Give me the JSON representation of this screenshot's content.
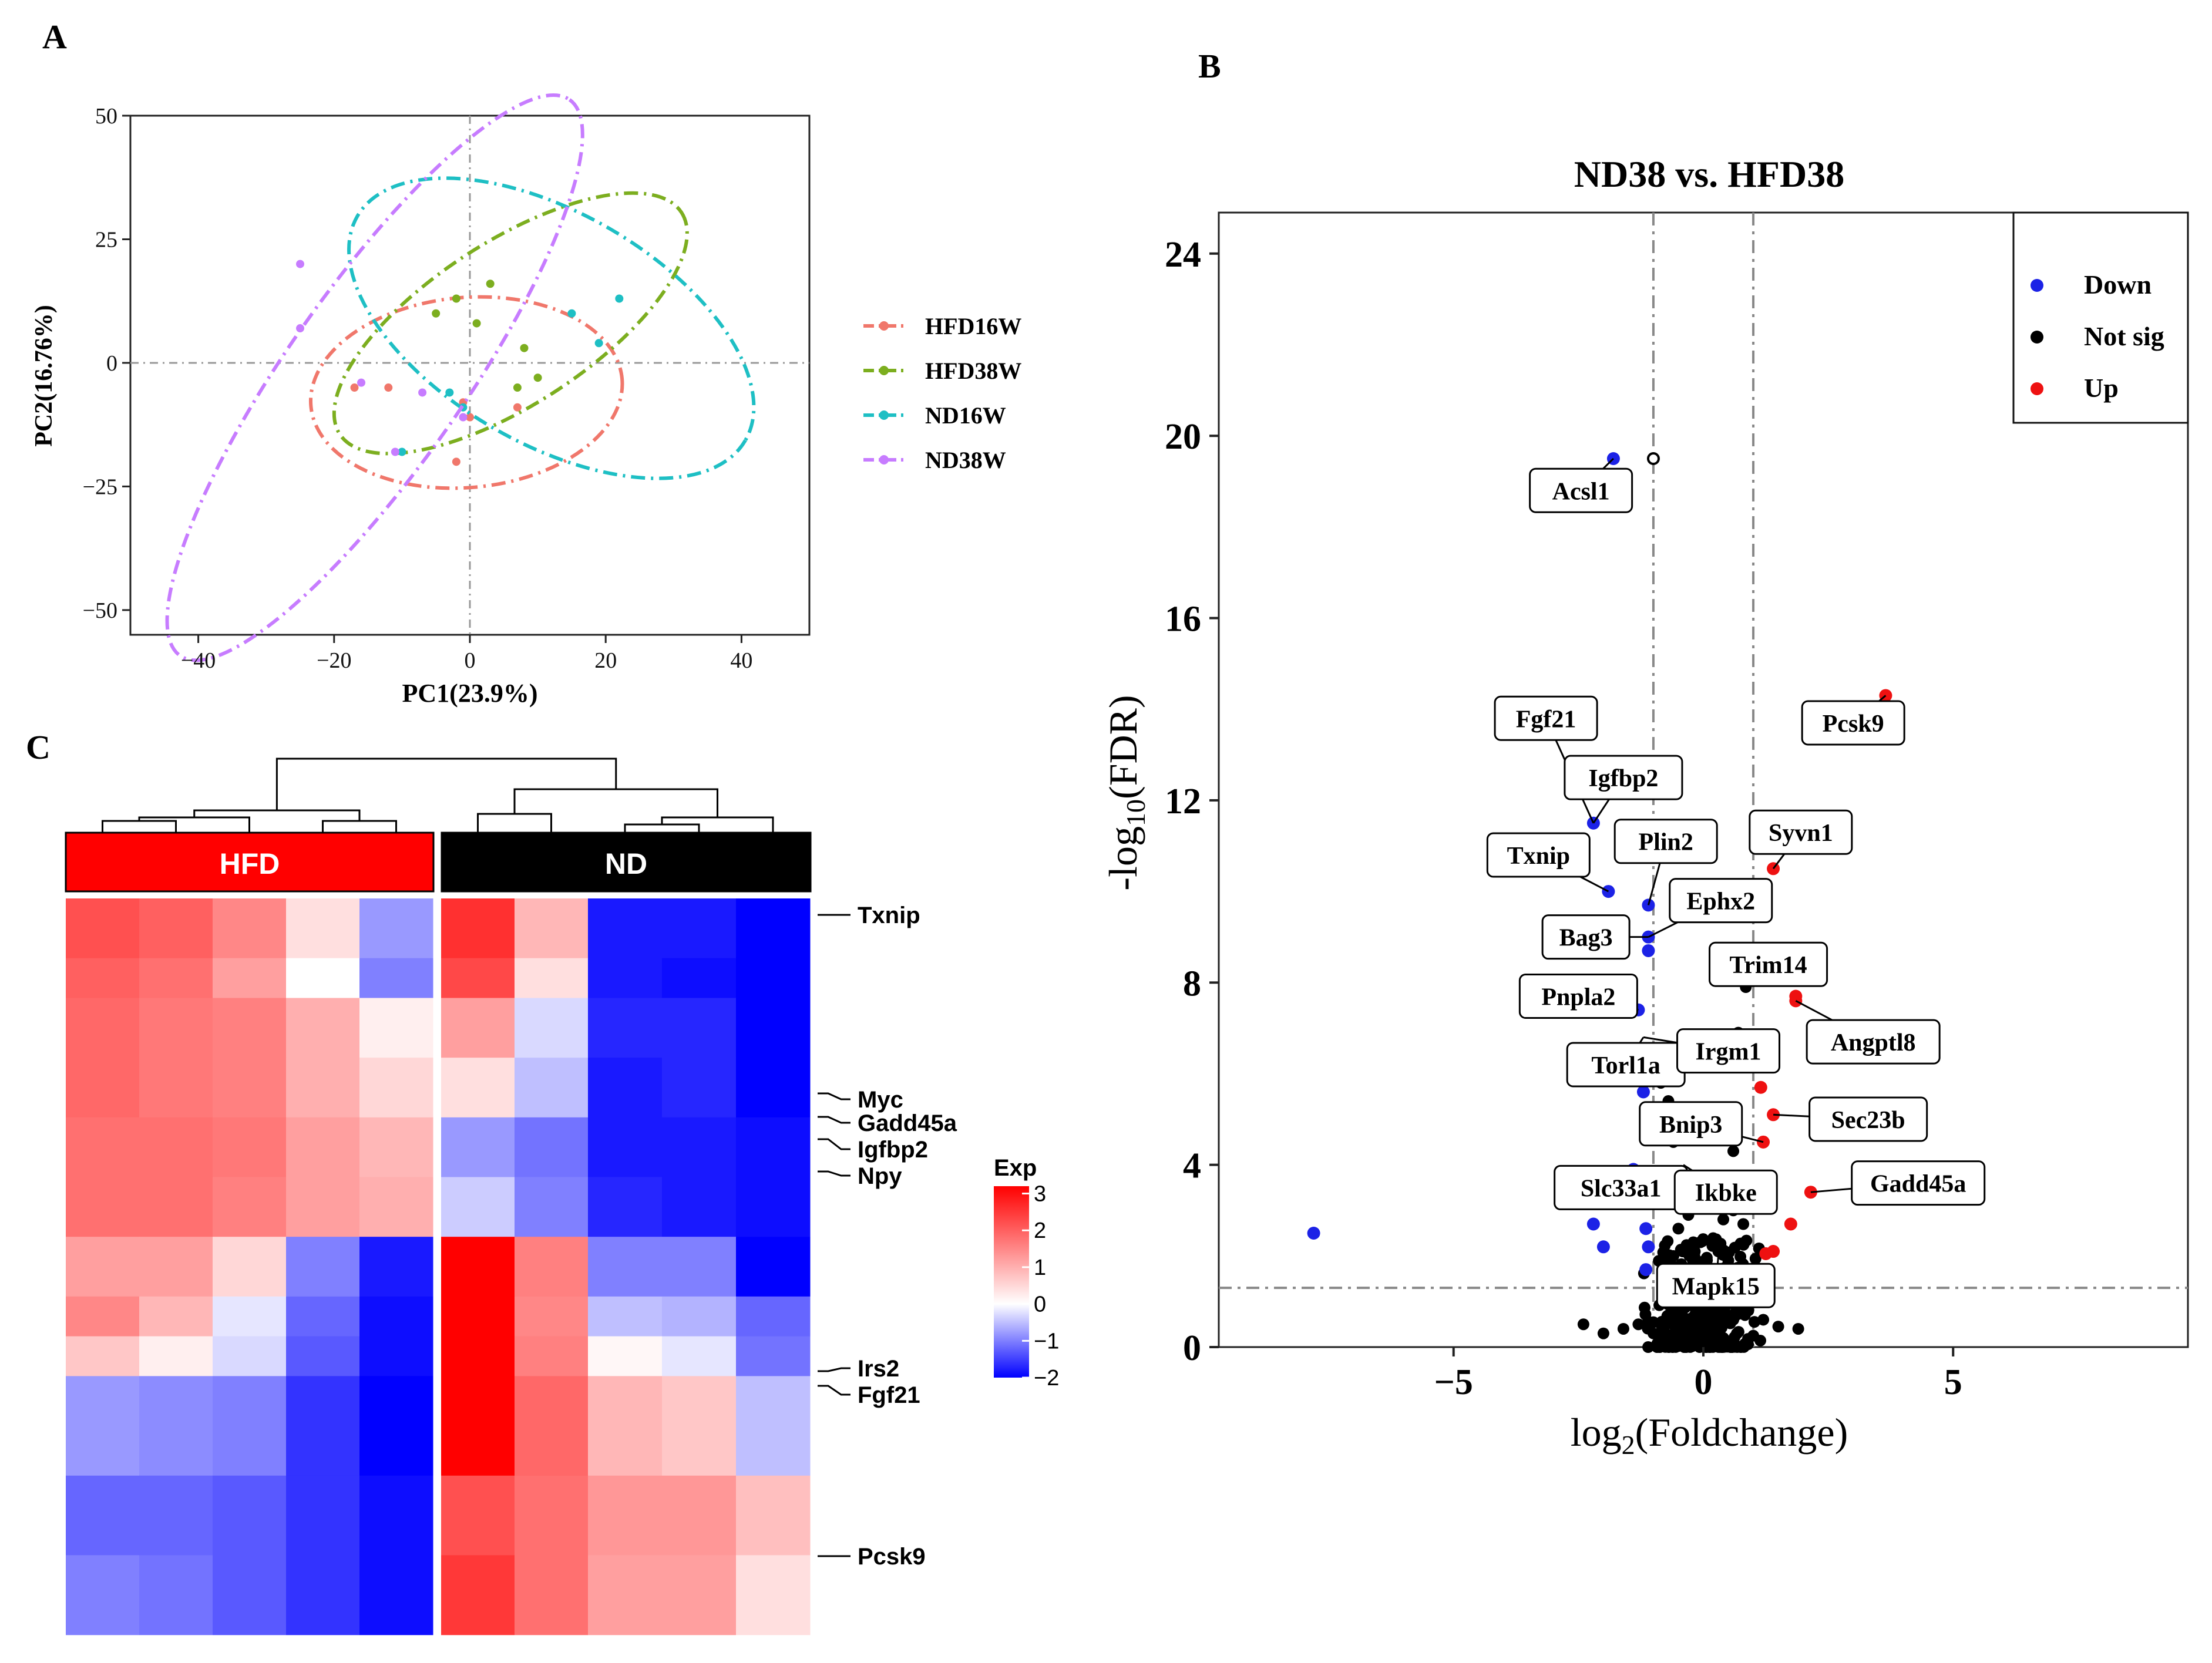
{
  "panel_labels": {
    "a": "A",
    "b": "B",
    "c": "C"
  },
  "chart_data": [
    {
      "type": "scatter",
      "panel": "A",
      "title": "",
      "xlabel": "PC1(23.9%)",
      "ylabel": "PC2(16.76%)",
      "xlim": [
        -50,
        50
      ],
      "ylim": [
        -55,
        50
      ],
      "xticks": [
        -40,
        -20,
        0,
        20,
        40
      ],
      "yticks": [
        -50,
        -25,
        0,
        25,
        50
      ],
      "xtick_labels": [
        "−40",
        "−20",
        "0",
        "20",
        "40"
      ],
      "ytick_labels": [
        "−50",
        "−25",
        "0",
        "25",
        "50"
      ],
      "legend": [
        {
          "label": "HFD16W",
          "color": "#f0776b"
        },
        {
          "label": "HFD38W",
          "color": "#7cae1f"
        },
        {
          "label": "ND16W",
          "color": "#1ebfc4"
        },
        {
          "label": "ND38W",
          "color": "#c77cff"
        }
      ],
      "series": [
        {
          "name": "HFD16W",
          "color": "#f0776b",
          "points": [
            [
              -17,
              -5
            ],
            [
              -12,
              -5
            ],
            [
              -1,
              -8
            ],
            [
              7,
              -9
            ],
            [
              0,
              -11
            ],
            [
              -2,
              -20
            ]
          ],
          "ellipse": {
            "center": [
              -0.5,
              -6
            ],
            "rx": 23,
            "ry": 14,
            "angle": -5
          }
        },
        {
          "name": "HFD38W",
          "color": "#7cae1f",
          "points": [
            [
              -5,
              10
            ],
            [
              -2,
              13
            ],
            [
              3,
              16
            ],
            [
              1,
              8
            ],
            [
              8,
              3
            ],
            [
              10,
              -3
            ],
            [
              7,
              -5
            ]
          ],
          "ellipse": {
            "center": [
              6,
              8
            ],
            "rx": 30,
            "ry": 12,
            "angle": -33
          }
        },
        {
          "name": "ND16W",
          "color": "#1ebfc4",
          "points": [
            [
              22,
              13
            ],
            [
              15,
              10
            ],
            [
              19,
              4
            ],
            [
              -10,
              -18
            ],
            [
              -1,
              -9
            ],
            [
              -3,
              -6
            ]
          ],
          "ellipse": {
            "center": [
              12,
              7
            ],
            "rx": 33,
            "ry": 17,
            "angle": 30
          }
        },
        {
          "name": "ND38W",
          "color": "#c77cff",
          "points": [
            [
              -25,
              20
            ],
            [
              -25,
              7
            ],
            [
              -16,
              -4
            ],
            [
              -7,
              -6
            ],
            [
              -11,
              -18
            ],
            [
              -1,
              -11
            ]
          ],
          "ellipse": {
            "center": [
              -14,
              -3
            ],
            "rx": 50,
            "ry": 13,
            "angle": -55
          }
        }
      ]
    },
    {
      "type": "scatter",
      "panel": "B",
      "title": "ND38 vs. HFD38",
      "xlabel_main": "log",
      "xlabel_sub": "2",
      "xlabel_rest": "(Foldchange)",
      "ylabel_main": "-log",
      "ylabel_sub": "10",
      "ylabel_rest": "(FDR)",
      "xlim": [
        -9.7,
        9.7
      ],
      "ylim": [
        0,
        24.9
      ],
      "xticks": [
        -5,
        0,
        5
      ],
      "yticks": [
        0,
        4,
        8,
        12,
        16,
        20,
        24
      ],
      "xtick_labels": [
        "−5",
        "0",
        "5"
      ],
      "ytick_labels": [
        "0",
        "4",
        "8",
        "12",
        "16",
        "20",
        "24"
      ],
      "vlines": [
        -1,
        1
      ],
      "hline": 1.3,
      "legend": [
        {
          "label": "Down",
          "color": "#1c22e6"
        },
        {
          "label": "Not sig",
          "color": "#000000"
        },
        {
          "label": "Up",
          "color": "#ee1111"
        }
      ],
      "down_points": [
        [
          -1.8,
          19.5
        ],
        [
          -2.2,
          11.5
        ],
        [
          -1.9,
          10.0
        ],
        [
          -1.1,
          9.7
        ],
        [
          -1.1,
          9.0
        ],
        [
          -1.1,
          8.7
        ],
        [
          -1.3,
          7.4
        ],
        [
          -1.2,
          5.6
        ],
        [
          -1.4,
          3.9
        ],
        [
          -2.2,
          2.7
        ],
        [
          -2.0,
          2.2
        ],
        [
          -1.1,
          2.2
        ],
        [
          -1.15,
          2.6
        ],
        [
          -7.8,
          2.5
        ],
        [
          -1.15,
          1.7
        ]
      ],
      "up_points": [
        [
          3.65,
          14.3
        ],
        [
          1.4,
          10.5
        ],
        [
          1.85,
          7.6
        ],
        [
          1.85,
          7.7
        ],
        [
          1.15,
          5.7
        ],
        [
          1.4,
          5.1
        ],
        [
          1.2,
          4.5
        ],
        [
          2.15,
          3.4
        ],
        [
          1.75,
          2.7
        ],
        [
          1.4,
          2.1
        ],
        [
          1.25,
          2.05
        ]
      ],
      "ns_points": [
        [
          -1.0,
          19.5
        ],
        [
          0.85,
          7.9
        ],
        [
          0.7,
          6.9
        ],
        [
          -0.85,
          5.8
        ],
        [
          -0.7,
          5.4
        ],
        [
          -0.6,
          4.5
        ],
        [
          0.6,
          4.3
        ],
        [
          -0.9,
          3.4
        ],
        [
          0.6,
          3.0
        ],
        [
          -0.3,
          2.9
        ],
        [
          0.4,
          2.8
        ],
        [
          -0.5,
          2.6
        ],
        [
          0.8,
          2.7
        ],
        [
          -0.2,
          2.3
        ],
        [
          0.3,
          2.1
        ],
        [
          -0.6,
          2.0
        ],
        [
          0.5,
          1.9
        ],
        [
          -0.4,
          1.7
        ],
        [
          0.2,
          1.5
        ],
        [
          -0.1,
          1.2
        ],
        [
          0.7,
          1.4
        ],
        [
          -0.8,
          1.0
        ],
        [
          0.9,
          0.8
        ],
        [
          -1.3,
          0.5
        ],
        [
          -1.6,
          0.4
        ],
        [
          1.2,
          0.6
        ],
        [
          1.5,
          0.45
        ],
        [
          1.9,
          0.4
        ],
        [
          -2.0,
          0.3
        ],
        [
          -2.4,
          0.5
        ],
        [
          0.1,
          0.3
        ],
        [
          -0.3,
          0.5
        ],
        [
          0.4,
          0.2
        ],
        [
          -0.5,
          0.15
        ],
        [
          0.6,
          0.6
        ],
        [
          -0.7,
          0.7
        ],
        [
          0.15,
          0.9
        ],
        [
          -0.15,
          0.8
        ],
        [
          1.0,
          0.25
        ],
        [
          -1.0,
          0.3
        ],
        [
          0.3,
          1.0
        ],
        [
          -0.35,
          1.1
        ]
      ],
      "labels": [
        {
          "text": "Acsl1",
          "pt": [
            -1.8,
            19.5
          ],
          "at": [
            -2.45,
            18.8
          ]
        },
        {
          "text": "Fgf21",
          "pt": [
            -2.2,
            11.5
          ],
          "at": [
            -3.15,
            13.8
          ]
        },
        {
          "text": "Igfbp2",
          "pt": [
            -2.2,
            11.5
          ],
          "at": [
            -1.6,
            12.5
          ]
        },
        {
          "text": "Txnip",
          "pt": [
            -1.9,
            10.0
          ],
          "at": [
            -3.3,
            10.8
          ]
        },
        {
          "text": "Plin2",
          "pt": [
            -1.1,
            9.7
          ],
          "at": [
            -0.75,
            11.1
          ]
        },
        {
          "text": "Ephx2",
          "pt": [
            -1.1,
            9.0
          ],
          "at": [
            0.35,
            9.8
          ]
        },
        {
          "text": "Bag3",
          "pt": [
            -1.1,
            9.0
          ],
          "at": [
            -2.35,
            9.0
          ]
        },
        {
          "text": "Pnpla2",
          "pt": [
            -1.3,
            7.4
          ],
          "at": [
            -2.5,
            7.7
          ]
        },
        {
          "text": "Torl1a",
          "pt": [
            -1.2,
            6.8
          ],
          "at": [
            -1.55,
            6.2
          ]
        },
        {
          "text": "Irgm1",
          "pt": [
            -1.2,
            6.8
          ],
          "at": [
            0.5,
            6.5
          ]
        },
        {
          "text": "Bnip3",
          "pt": [
            1.2,
            4.5
          ],
          "at": [
            -0.25,
            4.9
          ]
        },
        {
          "text": "Slc33a1",
          "pt": [
            -1.4,
            3.9
          ],
          "at": [
            -1.65,
            3.5
          ]
        },
        {
          "text": "Ikbke",
          "pt": [
            -0.4,
            4.0
          ],
          "at": [
            0.45,
            3.4
          ]
        },
        {
          "text": "Mapk15",
          "pt": [
            0.3,
            2.0
          ],
          "at": [
            0.25,
            1.35
          ]
        },
        {
          "text": "Pcsk9",
          "pt": [
            3.65,
            14.3
          ],
          "at": [
            3.0,
            13.7
          ]
        },
        {
          "text": "Syvn1",
          "pt": [
            1.4,
            10.5
          ],
          "at": [
            1.95,
            11.3
          ]
        },
        {
          "text": "Trim14",
          "pt": [
            0.85,
            7.9
          ],
          "at": [
            1.3,
            8.4
          ]
        },
        {
          "text": "Angptl8",
          "pt": [
            1.85,
            7.6
          ],
          "at": [
            3.4,
            6.7
          ]
        },
        {
          "text": "Sec23b",
          "pt": [
            1.4,
            5.1
          ],
          "at": [
            3.3,
            5.0
          ]
        },
        {
          "text": "Gadd45a",
          "pt": [
            2.15,
            3.4
          ],
          "at": [
            4.3,
            3.6
          ]
        }
      ]
    },
    {
      "type": "heatmap",
      "panel": "C",
      "groups": [
        {
          "label": "HFD",
          "color": "#ff0000"
        },
        {
          "label": "ND",
          "color": "#000000"
        }
      ],
      "columns": 10,
      "row_blocks": [
        [
          2.2,
          2.0,
          1.5,
          0.4,
          -0.8,
          2.6,
          0.9,
          -1.8,
          -1.8,
          -2.8
        ],
        [
          2.0,
          1.8,
          1.2,
          0.0,
          -1.0,
          2.3,
          0.4,
          -1.8,
          -1.9,
          -2.8
        ],
        [
          1.9,
          1.7,
          1.6,
          1.0,
          0.2,
          1.2,
          -0.3,
          -1.7,
          -1.7,
          -2.2
        ],
        [
          1.9,
          1.7,
          1.6,
          1.0,
          0.5,
          0.4,
          -0.5,
          -1.8,
          -1.7,
          -2.3
        ],
        [
          1.8,
          1.8,
          1.7,
          1.2,
          0.9,
          -0.8,
          -1.1,
          -1.8,
          -1.8,
          -1.9
        ],
        [
          1.8,
          1.8,
          1.6,
          1.2,
          1.0,
          -0.4,
          -1.0,
          -1.7,
          -1.8,
          -1.9
        ],
        [
          1.2,
          1.2,
          0.5,
          -1.0,
          -1.8,
          3.2,
          1.6,
          -1.0,
          -1.0,
          -2.3
        ],
        [
          1.5,
          0.9,
          -0.2,
          -1.2,
          -1.9,
          3.3,
          1.5,
          -0.5,
          -0.6,
          -1.2
        ],
        [
          0.7,
          0.2,
          -0.3,
          -1.3,
          -1.9,
          3.4,
          1.6,
          0.1,
          -0.2,
          -1.1
        ],
        [
          -0.8,
          -0.9,
          -1.0,
          -1.6,
          -2.0,
          3.3,
          1.9,
          0.9,
          0.7,
          -0.5
        ],
        [
          -1.2,
          -1.2,
          -1.3,
          -1.6,
          -1.9,
          2.2,
          1.8,
          1.3,
          1.3,
          0.8
        ],
        [
          -1.0,
          -1.1,
          -1.3,
          -1.6,
          -1.9,
          2.5,
          1.8,
          1.2,
          1.2,
          0.4
        ]
      ],
      "row_block_heights": [
        3,
        2,
        3,
        3,
        3,
        3,
        3,
        2,
        2,
        5,
        4,
        4
      ],
      "gene_labels": [
        "Txnip",
        "Myc",
        "Gadd45a",
        "Igfbp2",
        "Npy",
        "Irs2",
        "Fgf21",
        "Pcsk9"
      ],
      "legend_title": "Exp",
      "legend_range": [
        -2,
        3.2
      ],
      "legend_ticks": [
        3,
        2,
        1,
        0,
        -1,
        -2
      ],
      "legend_tick_labels": [
        "3",
        "2",
        "1",
        "0",
        "−1",
        "−2"
      ]
    }
  ]
}
